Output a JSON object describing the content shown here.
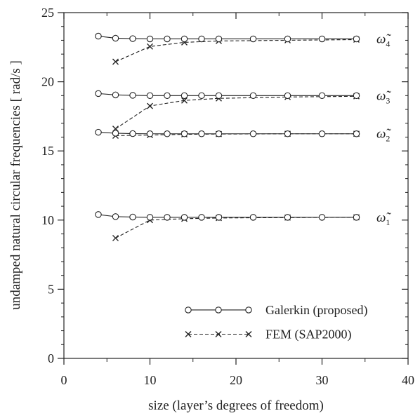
{
  "chart_data": {
    "type": "line",
    "title": "",
    "xlabel": "size (layer’s degrees of freedom)",
    "ylabel": "undamped natural circular frequencies [ rad/s ]",
    "xlim": [
      0,
      40
    ],
    "ylim": [
      0,
      25
    ],
    "xticks": [
      0,
      10,
      20,
      30,
      40
    ],
    "yticks": [
      0,
      5,
      10,
      15,
      20,
      25
    ],
    "grid": false,
    "legend_position": "lower-right",
    "series": [
      {
        "name": "Galerkin (proposed)",
        "group": "galerkin",
        "mode": "1",
        "marker": "circle",
        "linestyle": "solid",
        "x": [
          4,
          6,
          8,
          10,
          12,
          14,
          16,
          18,
          22,
          26,
          30,
          34
        ],
        "y": [
          10.4,
          10.25,
          10.22,
          10.2,
          10.2,
          10.2,
          10.2,
          10.2,
          10.2,
          10.2,
          10.2,
          10.2
        ]
      },
      {
        "name": "FEM (SAP2000)",
        "group": "fem",
        "mode": "1",
        "marker": "x",
        "linestyle": "dashed",
        "x": [
          6,
          10,
          14,
          18,
          26,
          34
        ],
        "y": [
          8.7,
          10.0,
          10.1,
          10.15,
          10.18,
          10.2
        ]
      },
      {
        "name": "Galerkin (proposed)",
        "group": "galerkin",
        "mode": "2",
        "marker": "circle",
        "linestyle": "solid",
        "x": [
          4,
          6,
          8,
          10,
          12,
          14,
          16,
          18,
          22,
          26,
          30,
          34
        ],
        "y": [
          16.35,
          16.28,
          16.25,
          16.24,
          16.24,
          16.24,
          16.24,
          16.24,
          16.24,
          16.24,
          16.24,
          16.24
        ]
      },
      {
        "name": "FEM (SAP2000)",
        "group": "fem",
        "mode": "2",
        "marker": "x",
        "linestyle": "dashed",
        "x": [
          6,
          10,
          14,
          18,
          26,
          34
        ],
        "y": [
          16.1,
          16.15,
          16.2,
          16.22,
          16.24,
          16.24
        ]
      },
      {
        "name": "Galerkin (proposed)",
        "group": "galerkin",
        "mode": "3",
        "marker": "circle",
        "linestyle": "solid",
        "x": [
          4,
          6,
          8,
          10,
          12,
          14,
          16,
          18,
          22,
          26,
          30,
          34
        ],
        "y": [
          19.15,
          19.05,
          19.02,
          19.0,
          19.0,
          19.0,
          19.0,
          19.0,
          19.0,
          19.0,
          19.0,
          19.0
        ]
      },
      {
        "name": "FEM (SAP2000)",
        "group": "fem",
        "mode": "3",
        "marker": "x",
        "linestyle": "dashed",
        "x": [
          6,
          10,
          14,
          18,
          26,
          34
        ],
        "y": [
          16.6,
          18.25,
          18.65,
          18.8,
          18.9,
          18.95
        ]
      },
      {
        "name": "Galerkin (proposed)",
        "group": "galerkin",
        "mode": "4",
        "marker": "circle",
        "linestyle": "solid",
        "x": [
          4,
          6,
          8,
          10,
          12,
          14,
          16,
          18,
          22,
          26,
          30,
          34
        ],
        "y": [
          23.3,
          23.15,
          23.12,
          23.1,
          23.1,
          23.1,
          23.1,
          23.1,
          23.1,
          23.1,
          23.1,
          23.1
        ]
      },
      {
        "name": "FEM (SAP2000)",
        "group": "fem",
        "mode": "4",
        "marker": "x",
        "linestyle": "dashed",
        "x": [
          6,
          10,
          14,
          18,
          26,
          34
        ],
        "y": [
          21.45,
          22.55,
          22.85,
          22.95,
          23.0,
          23.05
        ]
      }
    ],
    "mode_labels": [
      {
        "symbol": "ω̃",
        "sub": "1",
        "at_y": 10.2
      },
      {
        "symbol": "ω̃",
        "sub": "2",
        "at_y": 16.24
      },
      {
        "symbol": "ω̃",
        "sub": "3",
        "at_y": 19.0
      },
      {
        "symbol": "ω̃",
        "sub": "4",
        "at_y": 23.1
      }
    ],
    "legend": [
      {
        "label": "Galerkin (proposed)",
        "marker": "circle",
        "linestyle": "solid"
      },
      {
        "label": "FEM (SAP2000)",
        "marker": "x",
        "linestyle": "dashed"
      }
    ]
  }
}
